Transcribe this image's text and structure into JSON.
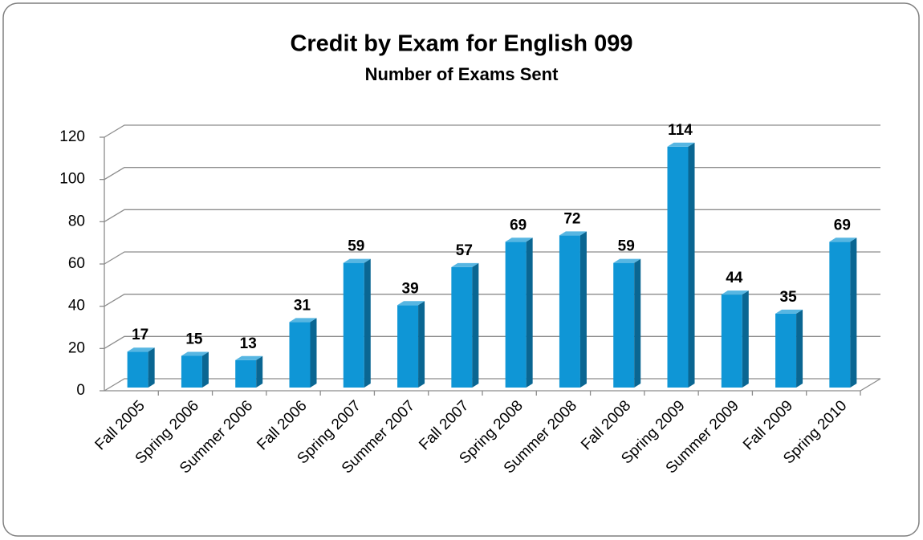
{
  "chart_data": {
    "type": "bar3d",
    "title": "Credit by Exam for English 099",
    "subtitle": "Number of Exams Sent",
    "categories": [
      "Fall 2005",
      "Spring 2006",
      "Summer 2006",
      "Fall 2006",
      "Spring 2007",
      "Summer 2007",
      "Fall 2007",
      "Spring 2008",
      "Summer 2008",
      "Fall 2008",
      "Spring 2009",
      "Summer 2009",
      "Fall 2009",
      "Spring 2010"
    ],
    "values": [
      17,
      15,
      13,
      31,
      59,
      39,
      57,
      69,
      72,
      59,
      114,
      44,
      35,
      69
    ],
    "color": "#0f96d6",
    "ylim": [
      0,
      120
    ],
    "yticks": [
      0,
      20,
      40,
      60,
      80,
      100,
      120
    ],
    "grid": true
  }
}
